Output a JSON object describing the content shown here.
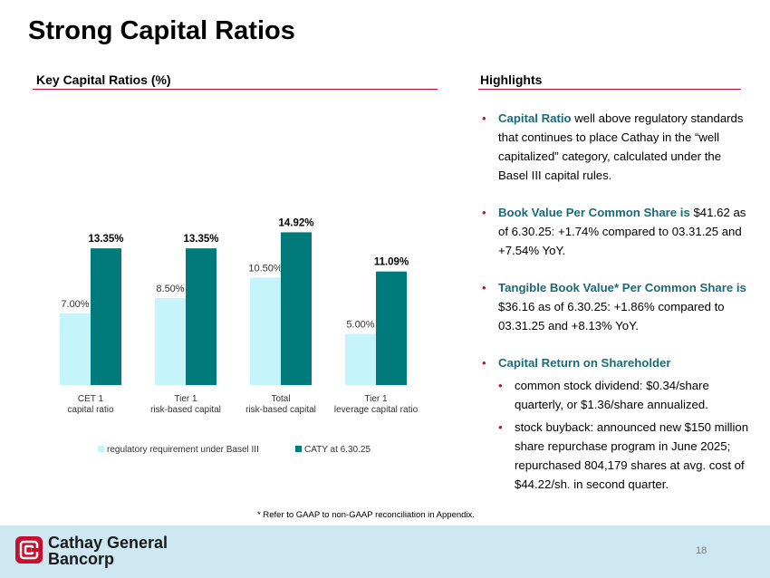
{
  "page_title": "Strong Capital Ratios",
  "left_heading": "Key Capital Ratios (%)",
  "right_heading": "Highlights",
  "colors": {
    "regulatory": "#c5f5fa",
    "caty": "#007a7a",
    "accent_red": "#c8102e",
    "highlight_teal": "#1b6a78"
  },
  "chart_data": {
    "type": "bar",
    "categories": [
      [
        "CET 1",
        "capital ratio"
      ],
      [
        "Tier 1",
        "risk-based capital"
      ],
      [
        "Total",
        "risk-based capital"
      ],
      [
        "Tier 1",
        "leverage capital ratio"
      ]
    ],
    "series": [
      {
        "name": "regulatory requirement under Basel III",
        "values": [
          7.0,
          8.5,
          10.5,
          5.0
        ],
        "labels": [
          "7.00%",
          "8.50%",
          "10.50%",
          "5.00%"
        ]
      },
      {
        "name": "CATY at 6.30.25",
        "values": [
          13.35,
          13.35,
          14.92,
          11.09
        ],
        "labels": [
          "13.35%",
          "13.35%",
          "14.92%",
          "11.09%"
        ]
      }
    ],
    "legend": "bottom",
    "grid": false
  },
  "highlights": [
    {
      "lead": "Capital Ratio",
      "text": " well above regulatory standards that continues to place Cathay in the “well capitalized” category, calculated under the Basel III capital rules."
    },
    {
      "lead": "Book Value Per Common Share is",
      "text": " $41.62 as of 6.30.25: +1.74% compared to 03.31.25 and +7.54% YoY."
    },
    {
      "lead": "Tangible Book Value* Per Common Share is",
      "text": " $36.16 as of 6.30.25: +1.86% compared to 03.31.25 and +8.13% YoY."
    },
    {
      "lead": "Capital Return on Shareholder",
      "text": "",
      "sub": [
        "common stock dividend: $0.34/share quarterly, or $1.36/share annualized.",
        "stock buyback: announced new $150 million share repurchase program in June 2025; repurchased 804,179 shares at avg. cost of $44.22/sh. in second quarter."
      ]
    }
  ],
  "bullet_glyph": "•",
  "footnote": "* Refer to GAAP to non-GAAP reconciliation in Appendix.",
  "footer": {
    "logo_line1": "Cathay General",
    "logo_line2": "Bancorp",
    "page_number": "18"
  }
}
